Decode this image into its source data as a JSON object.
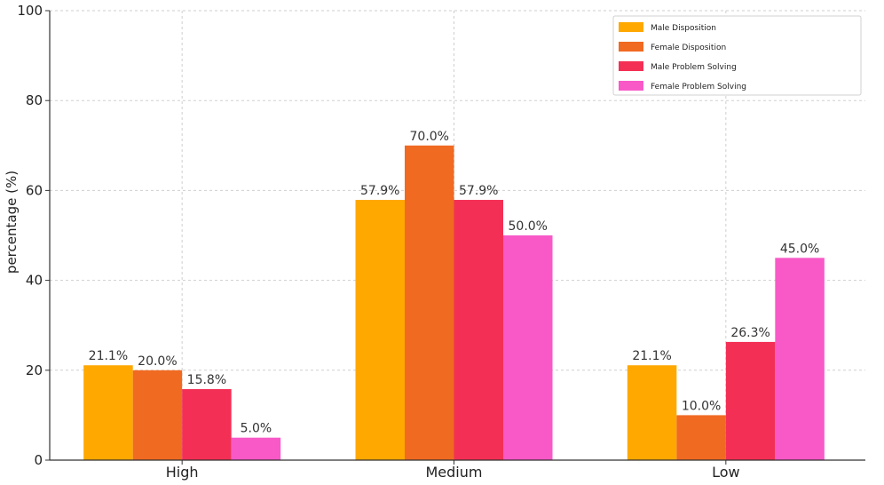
{
  "chart_data": {
    "type": "bar",
    "categories": [
      "High",
      "Medium",
      "Low"
    ],
    "series": [
      {
        "name": "Male Disposition",
        "color": "#FFA800",
        "values": [
          21.1,
          57.9,
          21.1
        ],
        "labels": [
          "21.1%",
          "57.9%",
          "21.1%"
        ]
      },
      {
        "name": "Female Disposition",
        "color": "#F06A22",
        "values": [
          20.0,
          70.0,
          10.0
        ],
        "labels": [
          "20.0%",
          "70.0%",
          "10.0%"
        ]
      },
      {
        "name": "Male Problem Solving",
        "color": "#F42F55",
        "values": [
          15.8,
          57.9,
          26.3
        ],
        "labels": [
          "15.8%",
          "57.9%",
          "26.3%"
        ]
      },
      {
        "name": "Female Problem Solving",
        "color": "#F859C7",
        "values": [
          5.0,
          50.0,
          45.0
        ],
        "labels": [
          "5.0%",
          "50.0%",
          "45.0%"
        ]
      }
    ],
    "xlabel": "",
    "ylabel": "percentage (%)",
    "ylim": [
      0,
      100
    ],
    "yticks": [
      "0",
      "20",
      "40",
      "60",
      "80",
      "100"
    ],
    "grid": true,
    "legend_position": "top-right"
  }
}
